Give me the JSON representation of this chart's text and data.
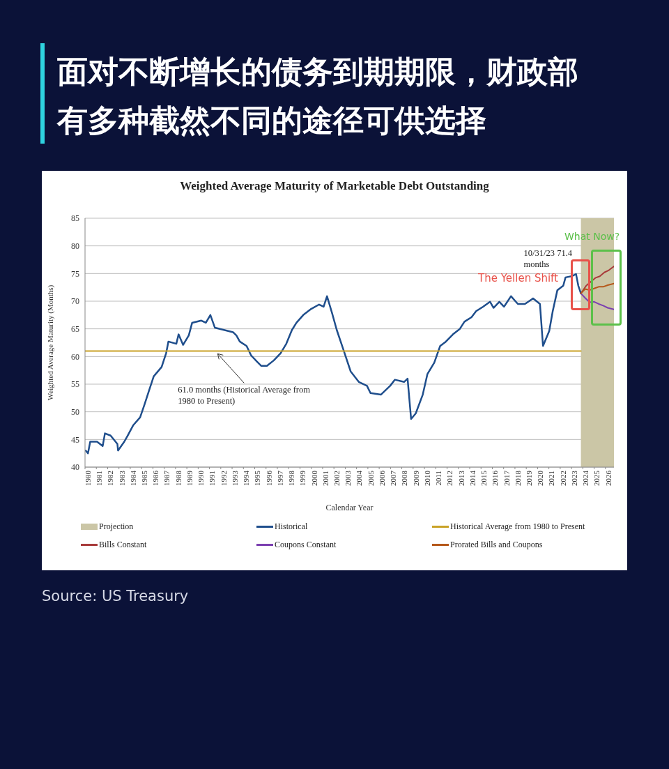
{
  "chart_data": {
    "type": "line",
    "title": "面对不断增长的债务到期期限，财政部有多种截然不同的途径可供选择",
    "subtitle": "Weighted Average Maturity of Marketable Debt Outstanding",
    "xlabel": "Calendar Year",
    "ylabel": "Weighted Average Maturity (Months)",
    "xlim": [
      1980,
      2026.75
    ],
    "xticks": [
      1980,
      1981,
      1982,
      1983,
      1984,
      1985,
      1986,
      1987,
      1988,
      1989,
      1990,
      1991,
      1992,
      1993,
      1994,
      1995,
      1996,
      1997,
      1998,
      1999,
      2000,
      2001,
      2002,
      2003,
      2004,
      2005,
      2006,
      2007,
      2008,
      2009,
      2010,
      2011,
      2012,
      2013,
      2014,
      2015,
      2016,
      2017,
      2018,
      2019,
      2020,
      2021,
      2022,
      2023,
      2024,
      2025,
      2026
    ],
    "ylim": [
      40,
      85
    ],
    "yticks": [
      40,
      45,
      50,
      55,
      60,
      65,
      70,
      75,
      80,
      85
    ],
    "grid": "y",
    "legend": "bottom",
    "bands": [
      {
        "axis": "x",
        "from": 2023.83,
        "to": 2026.75,
        "label": "Projection",
        "color": "#cbc6a6"
      }
    ],
    "series": [
      {
        "name": "Historical",
        "color": "#1f4e8c",
        "x": [
          1980.06,
          1980.26,
          1980.46,
          1981.06,
          1981.56,
          1981.76,
          1982.26,
          1982.86,
          1982.92,
          1983.47,
          1983.77,
          1984.27,
          1984.87,
          1985.27,
          1985.67,
          1986.07,
          1986.77,
          1987.17,
          1987.37,
          1988.07,
          1988.27,
          1988.67,
          1989.17,
          1989.47,
          1990.28,
          1990.68,
          1991.08,
          1991.48,
          1992.28,
          1993.08,
          1993.38,
          1993.68,
          1994.28,
          1994.68,
          1995.18,
          1995.58,
          1996.08,
          1996.69,
          1997.29,
          1997.79,
          1998.29,
          1998.69,
          1999.29,
          1999.99,
          2000.69,
          2001.09,
          2001.39,
          2001.84,
          2002.25,
          2002.86,
          2003.48,
          2004.2,
          2004.92,
          2005.23,
          2006.15,
          2006.97,
          2007.38,
          2008.2,
          2008.51,
          2008.82,
          2009.23,
          2009.85,
          2010.26,
          2010.87,
          2011.39,
          2011.9,
          2012.52,
          2013.13,
          2013.54,
          2014.16,
          2014.57,
          2015.18,
          2015.8,
          2016.11,
          2016.62,
          2017.03,
          2017.65,
          2018.26,
          2018.88,
          2019.6,
          2020.21,
          2020.48,
          2021.03,
          2021.34,
          2021.75,
          2022.27,
          2022.47,
          2022.99,
          2023.4,
          2023.6,
          2023.83
        ],
        "values": [
          43.0,
          42.5,
          44.6,
          44.6,
          43.8,
          46.1,
          45.7,
          44.2,
          43.0,
          44.6,
          45.7,
          47.6,
          49.0,
          51.4,
          53.9,
          56.4,
          58.1,
          60.6,
          62.7,
          62.3,
          64.0,
          62.1,
          63.8,
          66.1,
          66.5,
          66.1,
          67.5,
          65.2,
          64.8,
          64.4,
          63.8,
          62.7,
          61.9,
          60.2,
          59.1,
          58.3,
          58.3,
          59.3,
          60.6,
          62.3,
          64.8,
          66.1,
          67.5,
          68.6,
          69.4,
          69.0,
          70.9,
          67.8,
          64.8,
          61.1,
          57.3,
          55.4,
          54.7,
          53.4,
          53.1,
          54.7,
          55.8,
          55.4,
          56.0,
          48.7,
          49.7,
          53.1,
          56.8,
          58.9,
          61.9,
          62.7,
          64.0,
          65.0,
          66.3,
          67.1,
          68.2,
          69.0,
          69.9,
          68.8,
          69.9,
          69.0,
          70.9,
          69.5,
          69.5,
          70.5,
          69.5,
          61.9,
          64.6,
          68.2,
          72.0,
          72.8,
          74.3,
          74.5,
          74.9,
          72.8,
          71.4
        ]
      },
      {
        "name": "Historical Average from 1980 to Present",
        "color": "#c9a227",
        "x": [
          1980,
          2023.83
        ],
        "values": [
          61.0,
          61.0
        ]
      },
      {
        "name": "Bills Constant",
        "color": "#a83a3a",
        "x": [
          2023.83,
          2024.3,
          2024.7,
          2025.1,
          2025.5,
          2025.9,
          2026.3,
          2026.75
        ],
        "values": [
          71.4,
          72.8,
          73.5,
          74.2,
          74.5,
          75.2,
          75.6,
          76.3
        ]
      },
      {
        "name": "Coupons Constant",
        "color": "#7b3fb0",
        "x": [
          2023.83,
          2024.2,
          2024.6,
          2025.0,
          2025.4,
          2025.8,
          2026.2,
          2026.75
        ],
        "values": [
          71.4,
          70.6,
          69.8,
          69.9,
          69.5,
          69.2,
          68.8,
          68.5
        ]
      },
      {
        "name": "Prorated Bills and Coupons",
        "color": "#b5581a",
        "x": [
          2023.83,
          2024.2,
          2024.6,
          2025.0,
          2025.4,
          2025.8,
          2026.2,
          2026.75
        ],
        "values": [
          71.4,
          72.2,
          72.0,
          72.3,
          72.6,
          72.6,
          72.9,
          73.2
        ]
      }
    ],
    "annotations": [
      {
        "text": "61.0 months (Historical Average from 1980 to Present)",
        "x": 1991.6,
        "y": 61.0
      },
      {
        "text": "10/31/23 71.4 months",
        "x": 2023.83,
        "y": 71.4
      },
      "The Yellen Shift",
      "What Now?",
      "Source: US Treasury"
    ]
  }
}
